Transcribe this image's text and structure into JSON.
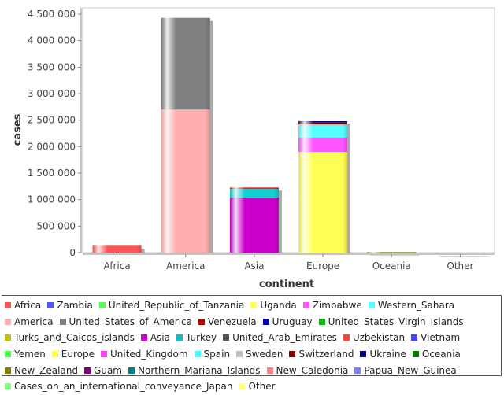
{
  "chart_data": {
    "type": "stacked-bar",
    "xlabel": "continent",
    "ylabel": "cases",
    "ylim": [
      0,
      4500000
    ],
    "yticks": [
      0,
      500000,
      1000000,
      1500000,
      2000000,
      2500000,
      3000000,
      3500000,
      4000000,
      4500000
    ],
    "ytick_labels": [
      "0",
      "500 000",
      "1 000 000",
      "1 500 000",
      "2 000 000",
      "2 500 000",
      "3 000 000",
      "3 500 000",
      "4 000 000",
      "4 500 000"
    ],
    "categories": [
      "Africa",
      "America",
      "Asia",
      "Europe",
      "Oceania",
      "Other"
    ],
    "segments": [
      {
        "category": "Africa",
        "name": "Africa",
        "value": 130000,
        "color": "#ff5555"
      },
      {
        "category": "America",
        "name": "America",
        "value": 2700000,
        "color": "#ffafaf"
      },
      {
        "category": "America",
        "name": "United_States_of_America",
        "value": 1730000,
        "color": "#808080"
      },
      {
        "category": "Asia",
        "name": "Asia",
        "value": 1040000,
        "color": "#cc00cc"
      },
      {
        "category": "Asia",
        "name": "Turkey",
        "value": 160000,
        "color": "#11d0d0"
      },
      {
        "category": "Asia",
        "name": "United_Arab_Emirates",
        "value": 20000,
        "color": "#555555"
      },
      {
        "category": "Asia",
        "name": "Uzbekistan",
        "value": 10000,
        "color": "#ff4444"
      },
      {
        "category": "Europe",
        "name": "Europe",
        "value": 1900000,
        "color": "#ffff55"
      },
      {
        "category": "Europe",
        "name": "United_Kingdom",
        "value": 270000,
        "color": "#ff55ff"
      },
      {
        "category": "Europe",
        "name": "Spain",
        "value": 230000,
        "color": "#55ffff"
      },
      {
        "category": "Europe",
        "name": "Sweden",
        "value": 30000,
        "color": "#c0c0c0"
      },
      {
        "category": "Europe",
        "name": "Switzerland",
        "value": 30000,
        "color": "#800000"
      },
      {
        "category": "Europe",
        "name": "Ukraine",
        "value": 20000,
        "color": "#000080"
      },
      {
        "category": "Oceania",
        "name": "Oceania",
        "value": 8000,
        "color": "#008000"
      },
      {
        "category": "Oceania",
        "name": "New_Zealand",
        "value": 1500,
        "color": "#808000"
      },
      {
        "category": "Other",
        "name": "Other",
        "value": 700,
        "color": "#ffff55"
      }
    ],
    "legend": [
      {
        "label": "Africa",
        "color": "#ff5555"
      },
      {
        "label": "Zambia",
        "color": "#5555ff"
      },
      {
        "label": "United_Republic_of_Tanzania",
        "color": "#55ff55"
      },
      {
        "label": "Uganda",
        "color": "#ffff55"
      },
      {
        "label": "Zimbabwe",
        "color": "#ff55ff"
      },
      {
        "label": "Western_Sahara",
        "color": "#55ffff"
      },
      {
        "label": "America",
        "color": "#ffafaf"
      },
      {
        "label": "United_States_of_America",
        "color": "#808080"
      },
      {
        "label": "Venezuela",
        "color": "#c00000"
      },
      {
        "label": "Uruguay",
        "color": "#0000c0"
      },
      {
        "label": "United_States_Virgin_Islands",
        "color": "#00c000"
      },
      {
        "label": "Turks_and_Caicos_islands",
        "color": "#c0c000"
      },
      {
        "label": "Asia",
        "color": "#cc00cc"
      },
      {
        "label": "Turkey",
        "color": "#11c0c0"
      },
      {
        "label": "United_Arab_Emirates",
        "color": "#555555"
      },
      {
        "label": "Uzbekistan",
        "color": "#ff4444"
      },
      {
        "label": "Vietnam",
        "color": "#4444ff"
      },
      {
        "label": "Yemen",
        "color": "#44ff44"
      },
      {
        "label": "Europe",
        "color": "#ffff44"
      },
      {
        "label": "United_Kingdom",
        "color": "#ff44ff"
      },
      {
        "label": "Spain",
        "color": "#44ffff"
      },
      {
        "label": "Sweden",
        "color": "#c0c0c0"
      },
      {
        "label": "Switzerland",
        "color": "#800000"
      },
      {
        "label": "Ukraine",
        "color": "#000080"
      },
      {
        "label": "Oceania",
        "color": "#008000"
      },
      {
        "label": "New_Zealand",
        "color": "#808000"
      },
      {
        "label": "Guam",
        "color": "#800080"
      },
      {
        "label": "Northern_Mariana_Islands",
        "color": "#008080"
      },
      {
        "label": "New_Caledonia",
        "color": "#ff8080"
      },
      {
        "label": "Papua_New_Guinea",
        "color": "#8080ff"
      },
      {
        "label": "Cases_on_an_international_conveyance_Japan",
        "color": "#80ff80"
      },
      {
        "label": "Other",
        "color": "#ffff80"
      }
    ]
  }
}
